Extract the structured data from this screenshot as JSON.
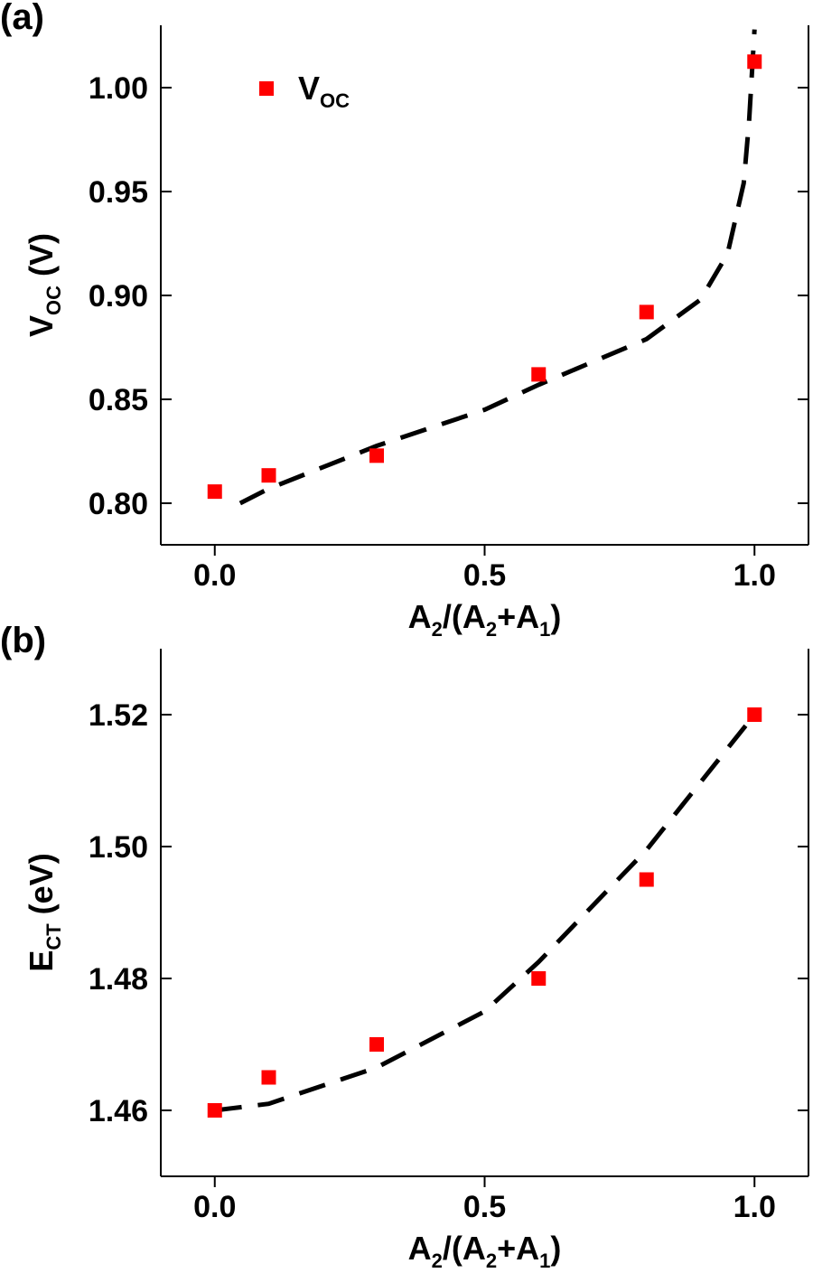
{
  "chart_data": [
    {
      "type": "scatter",
      "panel_label": "(a)",
      "xlabel": [
        "A",
        "2",
        "/(A",
        "2",
        "+A",
        "1",
        ")"
      ],
      "ylabel": [
        "V",
        "OC",
        " (V)"
      ],
      "xlim": [
        -0.1,
        1.1
      ],
      "xticks": [
        {
          "value": 0,
          "label": "0.0"
        },
        {
          "value": 0.5,
          "label": "0.5"
        },
        {
          "value": 1,
          "label": "1.0"
        }
      ],
      "ylim": [
        0.78,
        1.03
      ],
      "yticks": [
        {
          "value": 0.8,
          "label": "0.80"
        },
        {
          "value": 0.85,
          "label": "0.85"
        },
        {
          "value": 0.9,
          "label": "0.90"
        },
        {
          "value": 0.95,
          "label": "0.95"
        },
        {
          "value": 1.0,
          "label": "1.00"
        }
      ],
      "series": [
        {
          "name": [
            "V",
            "OC"
          ],
          "color": "#ff0000",
          "x": [
            0,
            0.1,
            0.3,
            0.6,
            0.8,
            1.0
          ],
          "values": [
            0.8056,
            0.8134,
            0.8229,
            0.862,
            0.892,
            1.0125
          ]
        }
      ],
      "fit": {
        "color": "#000000",
        "x": [
          0.047,
          0.1,
          0.3,
          0.5,
          0.6,
          0.8,
          0.9,
          0.95,
          0.98,
          0.99,
          1.0
        ],
        "values": [
          0.8,
          0.807,
          0.8276,
          0.845,
          0.857,
          0.879,
          0.898,
          0.92,
          0.954,
          0.984,
          1.028
        ]
      }
    },
    {
      "type": "scatter",
      "panel_label": "(b)",
      "xlabel": [
        "A",
        "2",
        "/(A",
        "2",
        "+A",
        "1",
        ")"
      ],
      "ylabel": [
        "E",
        "CT",
        " (eV)"
      ],
      "xlim": [
        -0.1,
        1.1
      ],
      "xticks": [
        {
          "value": 0,
          "label": "0.0"
        },
        {
          "value": 0.5,
          "label": "0.5"
        },
        {
          "value": 1,
          "label": "1.0"
        }
      ],
      "ylim": [
        1.45,
        1.53
      ],
      "yticks": [
        1.46,
        {
          "value": 1.48,
          "label": "1.48"
        },
        {
          "value": 1.5,
          "label": "1.50"
        },
        1.52
      ],
      "series": [
        {
          "color": "#ff0000",
          "x": [
            0,
            0.1,
            0.3,
            0.6,
            0.8,
            1.0
          ],
          "values": [
            1.46,
            1.465,
            1.47,
            1.48,
            1.495,
            1.52
          ]
        }
      ],
      "fit": {
        "color": "#000000",
        "x": [
          0,
          0.1,
          0.3,
          0.5,
          0.6,
          0.8,
          1.0
        ],
        "values": [
          1.46,
          1.461,
          1.4665,
          1.475,
          1.4825,
          1.4995,
          1.52
        ]
      }
    }
  ]
}
